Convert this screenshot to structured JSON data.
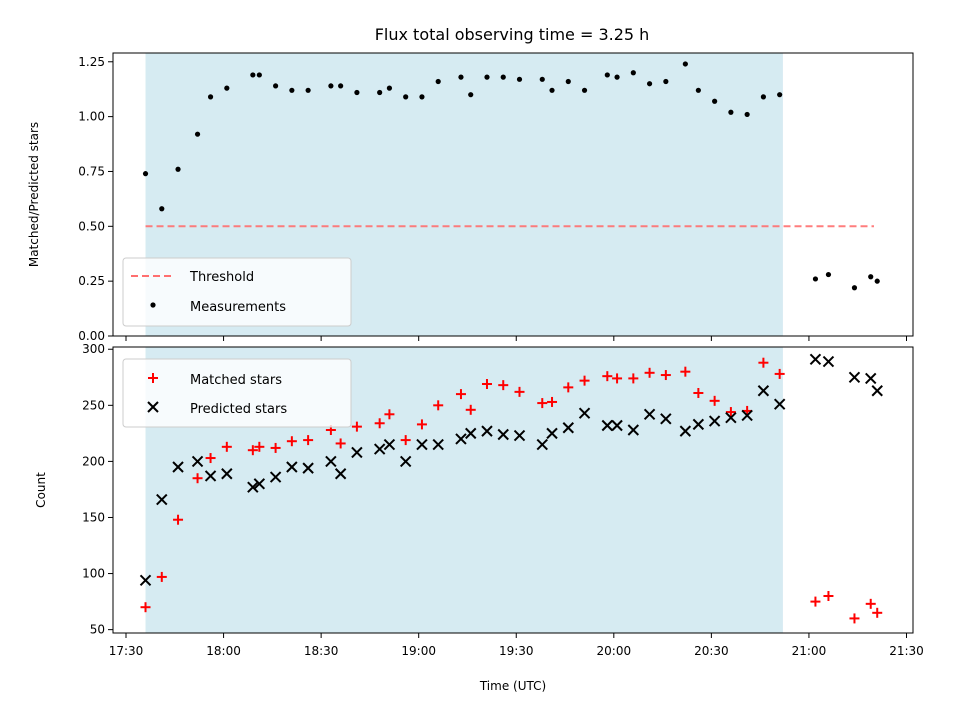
{
  "chart_data": {
    "type": "scatter",
    "title": "Flux total observing time = 3.25 h",
    "xlabel": "Time (UTC)",
    "x_ticks": [
      "17:30",
      "18:00",
      "18:30",
      "19:00",
      "19:30",
      "20:00",
      "20:30",
      "21:00",
      "21:30"
    ],
    "x_range": [
      "17:26",
      "21:32"
    ],
    "shaded_span": [
      "17:36",
      "20:52"
    ],
    "colors": {
      "shade": "#add8e6",
      "threshold": "#ff6f6f",
      "measurements": "#000000",
      "matched": "#ff0000",
      "predicted": "#000000"
    },
    "panels": [
      {
        "ylabel": "Matched/Predicted stars",
        "ylim": [
          0.0,
          1.29
        ],
        "yticks": [
          "0.00",
          "0.25",
          "0.50",
          "0.75",
          "1.00",
          "1.25"
        ],
        "legend": {
          "placement": "lower-left",
          "entries": [
            "Threshold",
            "Measurements"
          ]
        },
        "threshold": {
          "name": "Threshold",
          "value": 0.5,
          "x": [
            "17:36",
            "21:20"
          ]
        },
        "series": [
          {
            "name": "Measurements",
            "marker": "dot",
            "x": [
              "17:36",
              "17:41",
              "17:46",
              "17:52",
              "17:56",
              "18:01",
              "18:09",
              "18:11",
              "18:16",
              "18:21",
              "18:26",
              "18:33",
              "18:36",
              "18:41",
              "18:48",
              "18:51",
              "18:56",
              "19:01",
              "19:06",
              "19:13",
              "19:16",
              "19:21",
              "19:26",
              "19:31",
              "19:38",
              "19:41",
              "19:46",
              "19:51",
              "19:58",
              "20:01",
              "20:06",
              "20:11",
              "20:16",
              "20:22",
              "20:26",
              "20:31",
              "20:36",
              "20:41",
              "20:46",
              "20:51",
              "21:02",
              "21:06",
              "21:14",
              "21:19",
              "21:21"
            ],
            "y": [
              0.74,
              0.58,
              0.76,
              0.92,
              1.09,
              1.13,
              1.19,
              1.19,
              1.14,
              1.12,
              1.12,
              1.14,
              1.14,
              1.11,
              1.11,
              1.13,
              1.09,
              1.09,
              1.16,
              1.18,
              1.1,
              1.18,
              1.18,
              1.17,
              1.17,
              1.12,
              1.16,
              1.12,
              1.19,
              1.18,
              1.2,
              1.15,
              1.16,
              1.24,
              1.12,
              1.07,
              1.02,
              1.01,
              1.09,
              1.1,
              0.26,
              0.28,
              0.22,
              0.27,
              0.25
            ]
          }
        ]
      },
      {
        "ylabel": "Count",
        "ylim": [
          47,
          302
        ],
        "yticks": [
          "50",
          "100",
          "150",
          "200",
          "250",
          "300"
        ],
        "legend": {
          "placement": "upper-left",
          "entries": [
            "Matched stars",
            "Predicted stars"
          ]
        },
        "series": [
          {
            "name": "Matched stars",
            "marker": "plus",
            "x": [
              "17:36",
              "17:41",
              "17:46",
              "17:52",
              "17:56",
              "18:01",
              "18:09",
              "18:11",
              "18:16",
              "18:21",
              "18:26",
              "18:33",
              "18:36",
              "18:41",
              "18:48",
              "18:51",
              "18:56",
              "19:01",
              "19:06",
              "19:13",
              "19:16",
              "19:21",
              "19:26",
              "19:31",
              "19:38",
              "19:41",
              "19:46",
              "19:51",
              "19:58",
              "20:01",
              "20:06",
              "20:11",
              "20:16",
              "20:22",
              "20:26",
              "20:31",
              "20:36",
              "20:41",
              "20:46",
              "20:51",
              "21:02",
              "21:06",
              "21:14",
              "21:19",
              "21:21"
            ],
            "y": [
              70,
              97,
              148,
              185,
              203,
              213,
              210,
              213,
              212,
              218,
              219,
              228,
              216,
              231,
              234,
              242,
              219,
              233,
              250,
              260,
              246,
              269,
              268,
              262,
              252,
              253,
              266,
              272,
              276,
              274,
              274,
              279,
              277,
              280,
              261,
              254,
              244,
              245,
              288,
              278,
              75,
              80,
              60,
              73,
              65
            ]
          },
          {
            "name": "Predicted stars",
            "marker": "x",
            "x": [
              "17:36",
              "17:41",
              "17:46",
              "17:52",
              "17:56",
              "18:01",
              "18:09",
              "18:11",
              "18:16",
              "18:21",
              "18:26",
              "18:33",
              "18:36",
              "18:41",
              "18:48",
              "18:51",
              "18:56",
              "19:01",
              "19:06",
              "19:13",
              "19:16",
              "19:21",
              "19:26",
              "19:31",
              "19:38",
              "19:41",
              "19:46",
              "19:51",
              "19:58",
              "20:01",
              "20:06",
              "20:11",
              "20:16",
              "20:22",
              "20:26",
              "20:31",
              "20:36",
              "20:41",
              "20:46",
              "20:51",
              "21:02",
              "21:06",
              "21:14",
              "21:19",
              "21:21"
            ],
            "y": [
              94,
              166,
              195,
              200,
              187,
              189,
              177,
              180,
              186,
              195,
              194,
              200,
              189,
              208,
              211,
              215,
              200,
              215,
              215,
              220,
              225,
              227,
              224,
              223,
              215,
              225,
              230,
              243,
              232,
              232,
              228,
              242,
              238,
              227,
              233,
              236,
              239,
              241,
              263,
              251,
              291,
              289,
              275,
              274,
              263
            ]
          }
        ]
      }
    ]
  }
}
